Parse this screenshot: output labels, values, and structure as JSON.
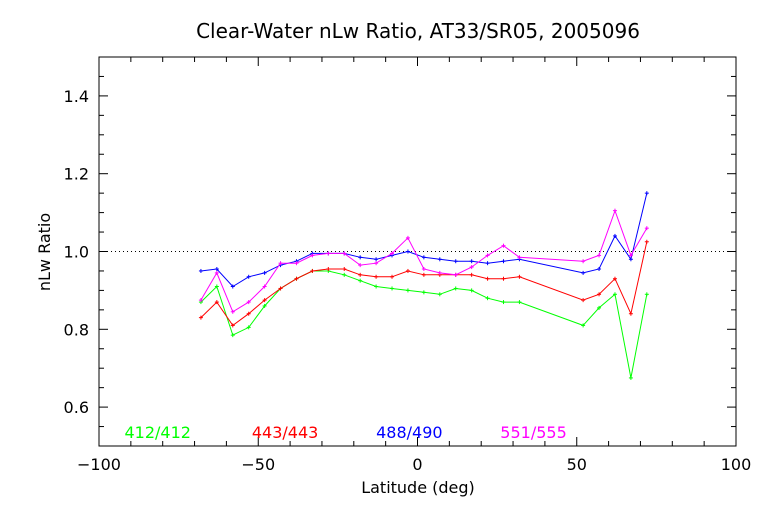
{
  "chart_data": {
    "type": "line",
    "title": "Clear-Water nLw Ratio, AT33/SR05, 2005096",
    "xlabel": "Latitude (deg)",
    "ylabel": "nLw Ratio",
    "xlim": [
      -100,
      100
    ],
    "ylim": [
      0.5,
      1.5
    ],
    "xticks": [
      -100,
      -50,
      0,
      50,
      100
    ],
    "yticks": [
      0.6,
      0.8,
      1.0,
      1.2,
      1.4
    ],
    "xtick_labels": [
      "−100",
      "−50",
      "0",
      "50",
      "100"
    ],
    "ytick_labels": [
      "0.6",
      "0.8",
      "1.0",
      "1.2",
      "1.4"
    ],
    "reference_line": 1.0,
    "grid": false,
    "legend_position": "bottom, inside plot",
    "x": [
      -68,
      -63,
      -58,
      -53,
      -48,
      -43,
      -38,
      -33,
      -28,
      -23,
      -18,
      -13,
      -8,
      -3,
      2,
      7,
      12,
      17,
      22,
      27,
      32,
      52,
      57,
      62,
      67,
      72
    ],
    "series": [
      {
        "name": "412/412",
        "color": "#00ff00",
        "values": [
          0.87,
          0.91,
          0.785,
          0.805,
          0.86,
          0.905,
          0.93,
          0.95,
          0.95,
          0.94,
          0.925,
          0.91,
          0.905,
          0.9,
          0.895,
          0.89,
          0.905,
          0.9,
          0.88,
          0.87,
          0.87,
          0.81,
          0.855,
          0.89,
          0.675,
          0.89
        ]
      },
      {
        "name": "443/443",
        "color": "#ff0000",
        "values": [
          0.83,
          0.87,
          0.81,
          0.84,
          0.875,
          0.905,
          0.93,
          0.95,
          0.955,
          0.955,
          0.94,
          0.935,
          0.935,
          0.95,
          0.94,
          0.94,
          0.94,
          0.94,
          0.93,
          0.93,
          0.935,
          0.875,
          0.89,
          0.93,
          0.84,
          1.025
        ]
      },
      {
        "name": "488/490",
        "color": "#0000ff",
        "values": [
          0.95,
          0.955,
          0.91,
          0.935,
          0.945,
          0.965,
          0.975,
          0.995,
          0.995,
          0.995,
          0.985,
          0.98,
          0.99,
          1.0,
          0.985,
          0.98,
          0.975,
          0.975,
          0.97,
          0.975,
          0.98,
          0.945,
          0.955,
          1.04,
          0.98,
          1.15
        ]
      },
      {
        "name": "551/555",
        "color": "#ff00ff",
        "values": [
          0.875,
          0.945,
          0.845,
          0.87,
          0.91,
          0.97,
          0.97,
          0.99,
          0.995,
          0.995,
          0.965,
          0.97,
          0.995,
          1.035,
          0.955,
          0.945,
          0.94,
          0.96,
          0.99,
          1.015,
          0.985,
          0.975,
          0.99,
          1.105,
          0.99,
          1.06
        ]
      }
    ]
  }
}
